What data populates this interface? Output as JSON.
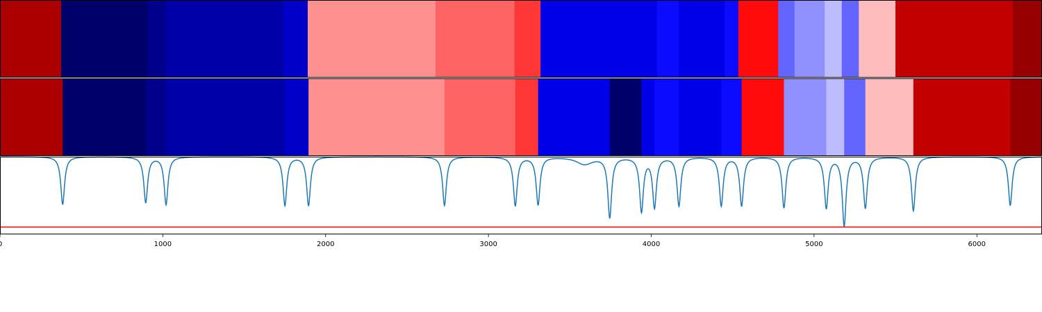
{
  "chart_data": {
    "type": "heatmap",
    "xlim": [
      0,
      6400
    ],
    "x_ticks": [
      0,
      1000,
      2000,
      3000,
      4000,
      5000,
      6000
    ],
    "x_tick_labels": [
      "0",
      "1000",
      "2000",
      "3000",
      "4000",
      "5000",
      "6000"
    ],
    "value_range": [
      0,
      23
    ],
    "colormap": "seismic",
    "rows": [
      {
        "boundaries": [
          0,
          375,
          905,
          1020,
          1740,
          1890,
          2675,
          3160,
          3320,
          4035,
          4170,
          4450,
          4535,
          4780,
          4880,
          5065,
          5170,
          5275,
          5500,
          6220,
          6400
        ],
        "values": [
          21,
          1,
          2,
          3,
          4,
          14,
          15,
          16,
          5,
          6,
          5,
          6,
          17,
          8,
          9,
          10,
          8,
          13,
          20,
          22
        ]
      },
      {
        "boundaries": [
          0,
          385,
          895,
          1020,
          1750,
          1895,
          2730,
          3165,
          3305,
          3745,
          3940,
          4020,
          4170,
          4430,
          4555,
          4815,
          5075,
          5185,
          5315,
          5610,
          6205,
          6400
        ],
        "values": [
          21,
          1,
          2,
          3,
          4,
          14,
          15,
          16,
          5,
          1,
          5,
          6,
          5,
          6,
          17,
          9,
          10,
          8,
          13,
          20,
          22
        ]
      }
    ],
    "change_signal": {
      "dips": [
        {
          "x": 385,
          "depth": 0.46
        },
        {
          "x": 895,
          "depth": 0.44
        },
        {
          "x": 1020,
          "depth": 0.46
        },
        {
          "x": 1750,
          "depth": 0.47
        },
        {
          "x": 1895,
          "depth": 0.47
        },
        {
          "x": 2730,
          "depth": 0.47
        },
        {
          "x": 3165,
          "depth": 0.47
        },
        {
          "x": 3305,
          "depth": 0.46
        },
        {
          "x": 3590,
          "depth": 0.07
        },
        {
          "x": 3745,
          "depth": 0.58
        },
        {
          "x": 3940,
          "depth": 0.52
        },
        {
          "x": 4020,
          "depth": 0.48
        },
        {
          "x": 4170,
          "depth": 0.47
        },
        {
          "x": 4430,
          "depth": 0.47
        },
        {
          "x": 4555,
          "depth": 0.47
        },
        {
          "x": 4815,
          "depth": 0.49
        },
        {
          "x": 5075,
          "depth": 0.49
        },
        {
          "x": 5185,
          "depth": 0.66
        },
        {
          "x": 5315,
          "depth": 0.49
        },
        {
          "x": 5610,
          "depth": 0.52
        },
        {
          "x": 6205,
          "depth": 0.47
        }
      ],
      "baseline": 0.0,
      "ylim": [
        -0.75,
        0.0
      ],
      "line_color": "#1f77b4"
    },
    "threshold": {
      "value": -0.68,
      "color": "#ff0000"
    }
  }
}
